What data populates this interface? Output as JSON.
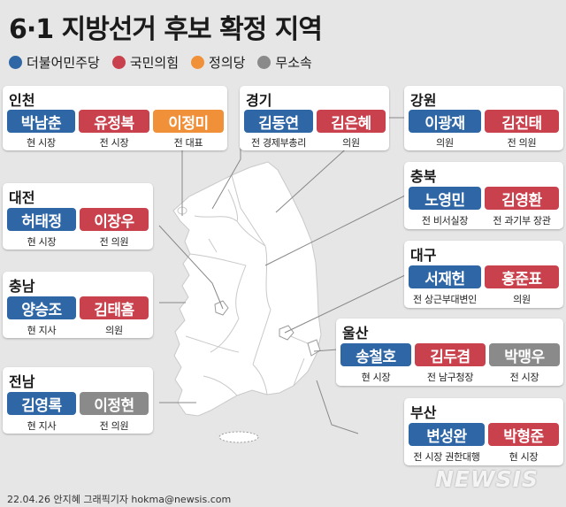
{
  "title": "6·1 지방선거 후보 확정 지역",
  "colors": {
    "democratic": "#2e66a6",
    "ppp": "#c9414c",
    "justice": "#f0913a",
    "independent": "#8a8a8a"
  },
  "legend": [
    {
      "label": "더불어민주당",
      "party": "democratic"
    },
    {
      "label": "국민의힘",
      "party": "ppp"
    },
    {
      "label": "정의당",
      "party": "justice"
    },
    {
      "label": "무소속",
      "party": "independent"
    }
  ],
  "regions": {
    "incheon": {
      "name": "인천",
      "candidates": [
        {
          "name": "박남춘",
          "role": "현 시장",
          "party": "democratic"
        },
        {
          "name": "유정복",
          "role": "전 시장",
          "party": "ppp"
        },
        {
          "name": "이정미",
          "role": "전 대표",
          "party": "justice"
        }
      ]
    },
    "gyeonggi": {
      "name": "경기",
      "candidates": [
        {
          "name": "김동연",
          "role": "전 경제부총리",
          "party": "democratic"
        },
        {
          "name": "김은혜",
          "role": "의원",
          "party": "ppp"
        }
      ]
    },
    "gangwon": {
      "name": "강원",
      "candidates": [
        {
          "name": "이광재",
          "role": "의원",
          "party": "democratic"
        },
        {
          "name": "김진태",
          "role": "전 의원",
          "party": "ppp"
        }
      ]
    },
    "daejeon": {
      "name": "대전",
      "candidates": [
        {
          "name": "허태정",
          "role": "현 시장",
          "party": "democratic"
        },
        {
          "name": "이장우",
          "role": "전 의원",
          "party": "ppp"
        }
      ]
    },
    "chungbuk": {
      "name": "충북",
      "candidates": [
        {
          "name": "노영민",
          "role": "전 비서실장",
          "party": "democratic"
        },
        {
          "name": "김영환",
          "role": "전 과기부 장관",
          "party": "ppp"
        }
      ]
    },
    "daegu": {
      "name": "대구",
      "candidates": [
        {
          "name": "서재헌",
          "role": "전 상근부대변인",
          "party": "democratic"
        },
        {
          "name": "홍준표",
          "role": "의원",
          "party": "ppp"
        }
      ]
    },
    "chungnam": {
      "name": "충남",
      "candidates": [
        {
          "name": "양승조",
          "role": "현 지사",
          "party": "democratic"
        },
        {
          "name": "김태흠",
          "role": "의원",
          "party": "ppp"
        }
      ]
    },
    "ulsan": {
      "name": "울산",
      "candidates": [
        {
          "name": "송철호",
          "role": "현 시장",
          "party": "democratic"
        },
        {
          "name": "김두겸",
          "role": "전 남구청장",
          "party": "ppp"
        },
        {
          "name": "박맹우",
          "role": "전 시장",
          "party": "independent"
        }
      ]
    },
    "jeonnam": {
      "name": "전남",
      "candidates": [
        {
          "name": "김영록",
          "role": "현 지사",
          "party": "democratic"
        },
        {
          "name": "이정현",
          "role": "전 의원",
          "party": "independent"
        }
      ]
    },
    "busan": {
      "name": "부산",
      "candidates": [
        {
          "name": "변성완",
          "role": "전 시장 권한대행",
          "party": "democratic"
        },
        {
          "name": "박형준",
          "role": "현 시장",
          "party": "ppp"
        }
      ]
    }
  },
  "footer": "22.04.26 안지혜 그래픽기자 hokma@newsis.com",
  "logo": "NEWSIS"
}
